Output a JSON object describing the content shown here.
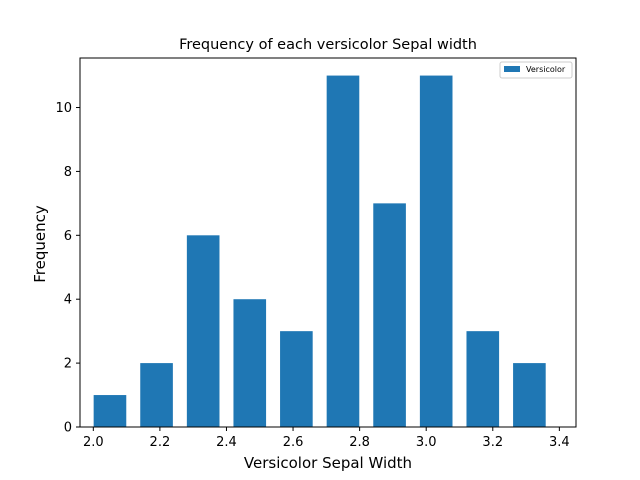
{
  "chart_data": {
    "type": "bar",
    "title": "Frequency of each versicolor Sepal width",
    "xlabel": "Versicolor Sepal Width",
    "ylabel": "Frequency",
    "x": [
      2.05,
      2.19,
      2.33,
      2.47,
      2.61,
      2.75,
      2.89,
      3.03,
      3.17,
      3.31
    ],
    "bin_width": 0.14,
    "values": [
      1,
      2,
      6,
      4,
      3,
      11,
      7,
      11,
      3,
      2
    ],
    "series": [
      {
        "name": "Versicolor",
        "values": [
          1,
          2,
          6,
          4,
          3,
          11,
          7,
          11,
          3,
          2
        ]
      }
    ],
    "xlim": [
      1.96,
      3.45
    ],
    "ylim": [
      0,
      11.55
    ],
    "x_ticks": [
      "2.0",
      "2.2",
      "2.4",
      "2.6",
      "2.8",
      "3.0",
      "3.2",
      "3.4"
    ],
    "y_ticks": [
      "0",
      "2",
      "4",
      "6",
      "8",
      "10"
    ],
    "grid": false,
    "legend_position": "top-right",
    "bar_color": "#1f77b4"
  }
}
